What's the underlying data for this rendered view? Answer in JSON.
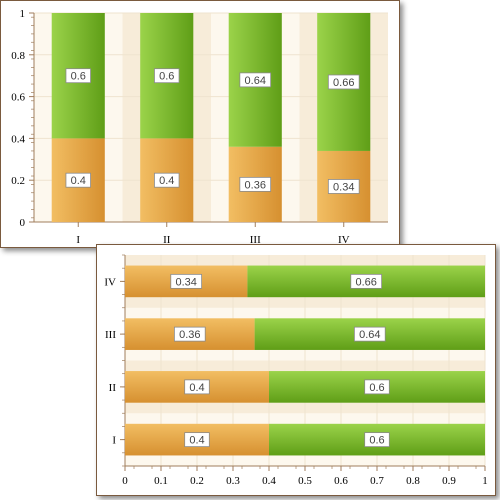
{
  "colors": {
    "series_a_light": "#f2be63",
    "series_a_dark": "#d69030",
    "series_b_light": "#9bd34a",
    "series_b_dark": "#5f9e17",
    "plot_bg": "#fdf8ee",
    "band": "#f7ecd9",
    "axis": "#a07e5c"
  },
  "chart_data": [
    {
      "type": "bar",
      "orientation": "vertical",
      "stacked": true,
      "categories": [
        "I",
        "II",
        "III",
        "IV"
      ],
      "series": [
        {
          "values": [
            0.4,
            0.4,
            0.36,
            0.34
          ]
        },
        {
          "values": [
            0.6,
            0.6,
            0.64,
            0.66
          ]
        }
      ],
      "value_labels": [
        [
          "0.4",
          "0.4",
          "0.36",
          "0.34"
        ],
        [
          "0.6",
          "0.6",
          "0.64",
          "0.66"
        ]
      ],
      "ylim": [
        0,
        1
      ],
      "y_ticks": [
        "0",
        "0.2",
        "0.4",
        "0.6",
        "0.8",
        "1"
      ],
      "y_tick_values": [
        0,
        0.2,
        0.4,
        0.6,
        0.8,
        1
      ],
      "grid": true
    },
    {
      "type": "bar",
      "orientation": "horizontal",
      "stacked": true,
      "categories": [
        "I",
        "II",
        "III",
        "IV"
      ],
      "series": [
        {
          "values": [
            0.4,
            0.4,
            0.36,
            0.34
          ]
        },
        {
          "values": [
            0.6,
            0.6,
            0.64,
            0.66
          ]
        }
      ],
      "value_labels": [
        [
          "0.4",
          "0.4",
          "0.36",
          "0.34"
        ],
        [
          "0.6",
          "0.6",
          "0.64",
          "0.66"
        ]
      ],
      "xlim": [
        0,
        1
      ],
      "x_ticks": [
        "0",
        "0.1",
        "0.2",
        "0.3",
        "0.4",
        "0.5",
        "0.6",
        "0.7",
        "0.8",
        "0.9",
        "1"
      ],
      "x_tick_values": [
        0,
        0.1,
        0.2,
        0.3,
        0.4,
        0.5,
        0.6,
        0.7,
        0.8,
        0.9,
        1
      ],
      "grid": true
    }
  ]
}
